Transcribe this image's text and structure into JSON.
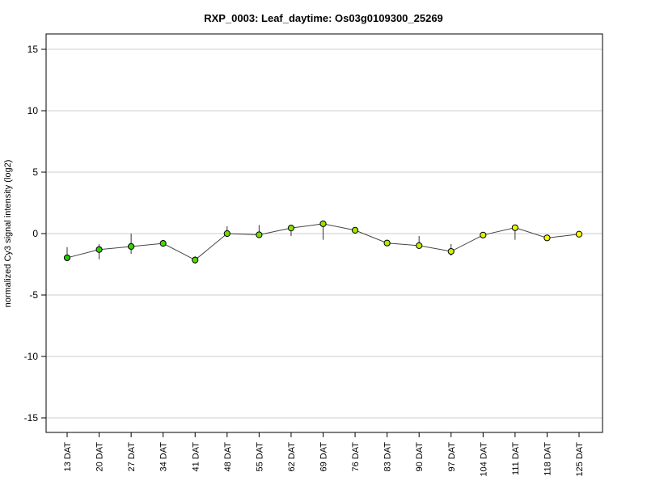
{
  "chart_data": {
    "type": "line",
    "title": "RXP_0003: Leaf_daytime: Os03g0109300_25269",
    "xlabel": "",
    "ylabel": "normalized Cy3 signal intensity (log2)",
    "ylim": [
      -16.2,
      16.2
    ],
    "yticks": [
      15,
      10,
      5,
      0,
      -5,
      -10,
      -15
    ],
    "grid": true,
    "categories": [
      "13 DAT",
      "20 DAT",
      "27 DAT",
      "34 DAT",
      "41 DAT",
      "48 DAT",
      "55 DAT",
      "62 DAT",
      "69 DAT",
      "76 DAT",
      "83 DAT",
      "90 DAT",
      "97 DAT",
      "104 DAT",
      "111 DAT",
      "118 DAT",
      "125 DAT"
    ],
    "values": [
      -1.97,
      -1.3,
      -1.05,
      -0.8,
      -2.15,
      0.0,
      -0.1,
      0.45,
      0.8,
      0.27,
      -0.77,
      -0.98,
      -1.45,
      -0.12,
      0.48,
      -0.35,
      -0.05
    ],
    "error_low": [
      -1.97,
      -2.1,
      -1.65,
      -0.8,
      -2.45,
      -0.2,
      -0.2,
      -0.2,
      -0.5,
      0.1,
      -1.0,
      -1.0,
      -1.8,
      -0.3,
      -0.5,
      -0.35,
      -0.15
    ],
    "error_high": [
      -1.1,
      -0.85,
      0.0,
      -0.8,
      -1.85,
      0.6,
      0.7,
      0.6,
      0.85,
      0.4,
      -0.5,
      -0.2,
      -0.85,
      0.1,
      0.6,
      -0.35,
      0.05
    ],
    "point_colors": [
      "#22cc00",
      "#2ecf00",
      "#3dd200",
      "#4bd500",
      "#5ad800",
      "#68db00",
      "#77de00",
      "#85e100",
      "#94e400",
      "#a2e700",
      "#b1ea00",
      "#bfed00",
      "#cef000",
      "#dcf300",
      "#ebf600",
      "#f5f900",
      "#ffff00"
    ]
  }
}
